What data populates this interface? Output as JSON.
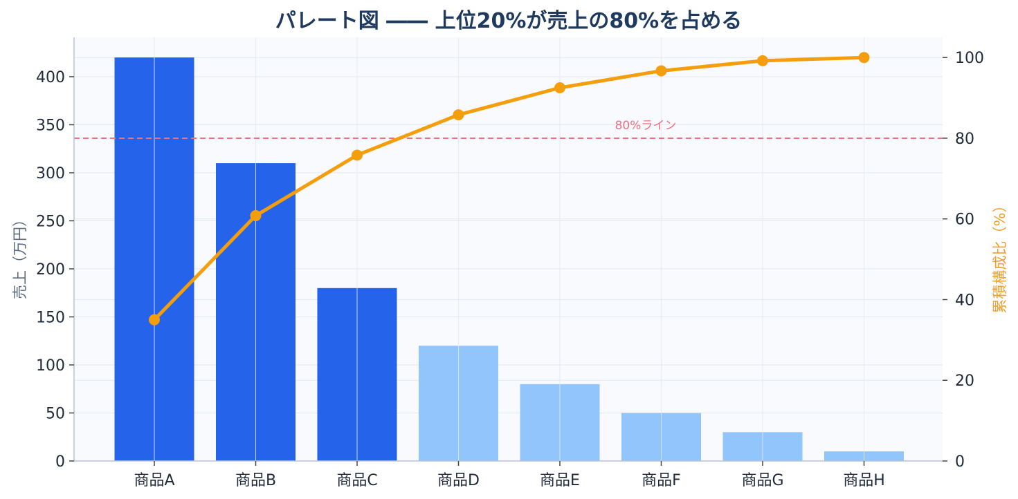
{
  "chart_data": {
    "type": "bar+line",
    "title": "パレート図 ―― 上位20%が売上の80%を占める",
    "categories": [
      "商品A",
      "商品B",
      "商品C",
      "商品D",
      "商品E",
      "商品F",
      "商品G",
      "商品H"
    ],
    "bars": {
      "name": "売上",
      "values": [
        420,
        310,
        180,
        120,
        80,
        50,
        30,
        10
      ],
      "highlight_count": 3,
      "color_top": "#2563eb",
      "color_rest": "#93c5fd"
    },
    "line": {
      "name": "累積構成比",
      "values": [
        35.0,
        60.8,
        75.8,
        85.8,
        92.5,
        96.7,
        99.2,
        100.0
      ],
      "color": "#f59e0b"
    },
    "reference_line": {
      "value": 80,
      "label": "80%ライン",
      "color": "#f07080"
    },
    "ylabel_left": "売上（万円）",
    "ylabel_right": "累積構成比（%）",
    "ylim_left": [
      0,
      441
    ],
    "ylim_right": [
      0,
      105
    ],
    "yticks_left": [
      0,
      50,
      100,
      150,
      200,
      250,
      300,
      350,
      400
    ],
    "yticks_right": [
      0,
      20,
      40,
      60,
      80,
      100
    ],
    "grid": true,
    "plot_background": "#f8fafd",
    "grid_color": "#e2e8f0"
  }
}
